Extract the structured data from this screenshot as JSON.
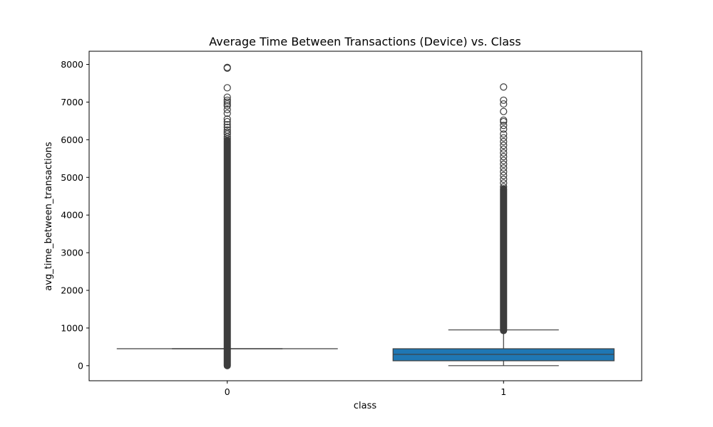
{
  "chart_data": {
    "type": "box",
    "title": "Average Time Between Transactions (Device) vs. Class",
    "xlabel": "class",
    "ylabel": "avg_time_between_transactions",
    "categories": [
      "0",
      "1"
    ],
    "ylim": [
      -400,
      8350
    ],
    "yticks": [
      0,
      1000,
      2000,
      3000,
      4000,
      5000,
      6000,
      7000,
      8000
    ],
    "ytick_labels": [
      "0",
      "1000",
      "2000",
      "3000",
      "4000",
      "5000",
      "6000",
      "7000",
      "8000"
    ],
    "grid": false,
    "legend": "none",
    "color": "#1f77b4",
    "boxes": [
      {
        "category": "0",
        "whisker_low": 450,
        "q1": 450,
        "median": 450,
        "q3": 450,
        "whisker_high": 450,
        "outlier_range": [
          0,
          5980
        ],
        "outliers": [
          6020,
          6080,
          6150,
          6200,
          6260,
          6330,
          6400,
          6480,
          6550,
          6700,
          6800,
          6900,
          6950,
          7000,
          7050,
          7130,
          7380,
          7900,
          7920
        ]
      },
      {
        "category": "1",
        "whisker_low": 0,
        "q1": 130,
        "median": 300,
        "q3": 450,
        "whisker_high": 950,
        "outlier_range": [
          930,
          4700
        ],
        "outliers": [
          4750,
          4850,
          4950,
          5050,
          5150,
          5250,
          5350,
          5450,
          5550,
          5650,
          5750,
          5850,
          5950,
          6050,
          6150,
          6280,
          6380,
          6480,
          6520,
          6750,
          6950,
          7050,
          7400
        ]
      }
    ]
  }
}
